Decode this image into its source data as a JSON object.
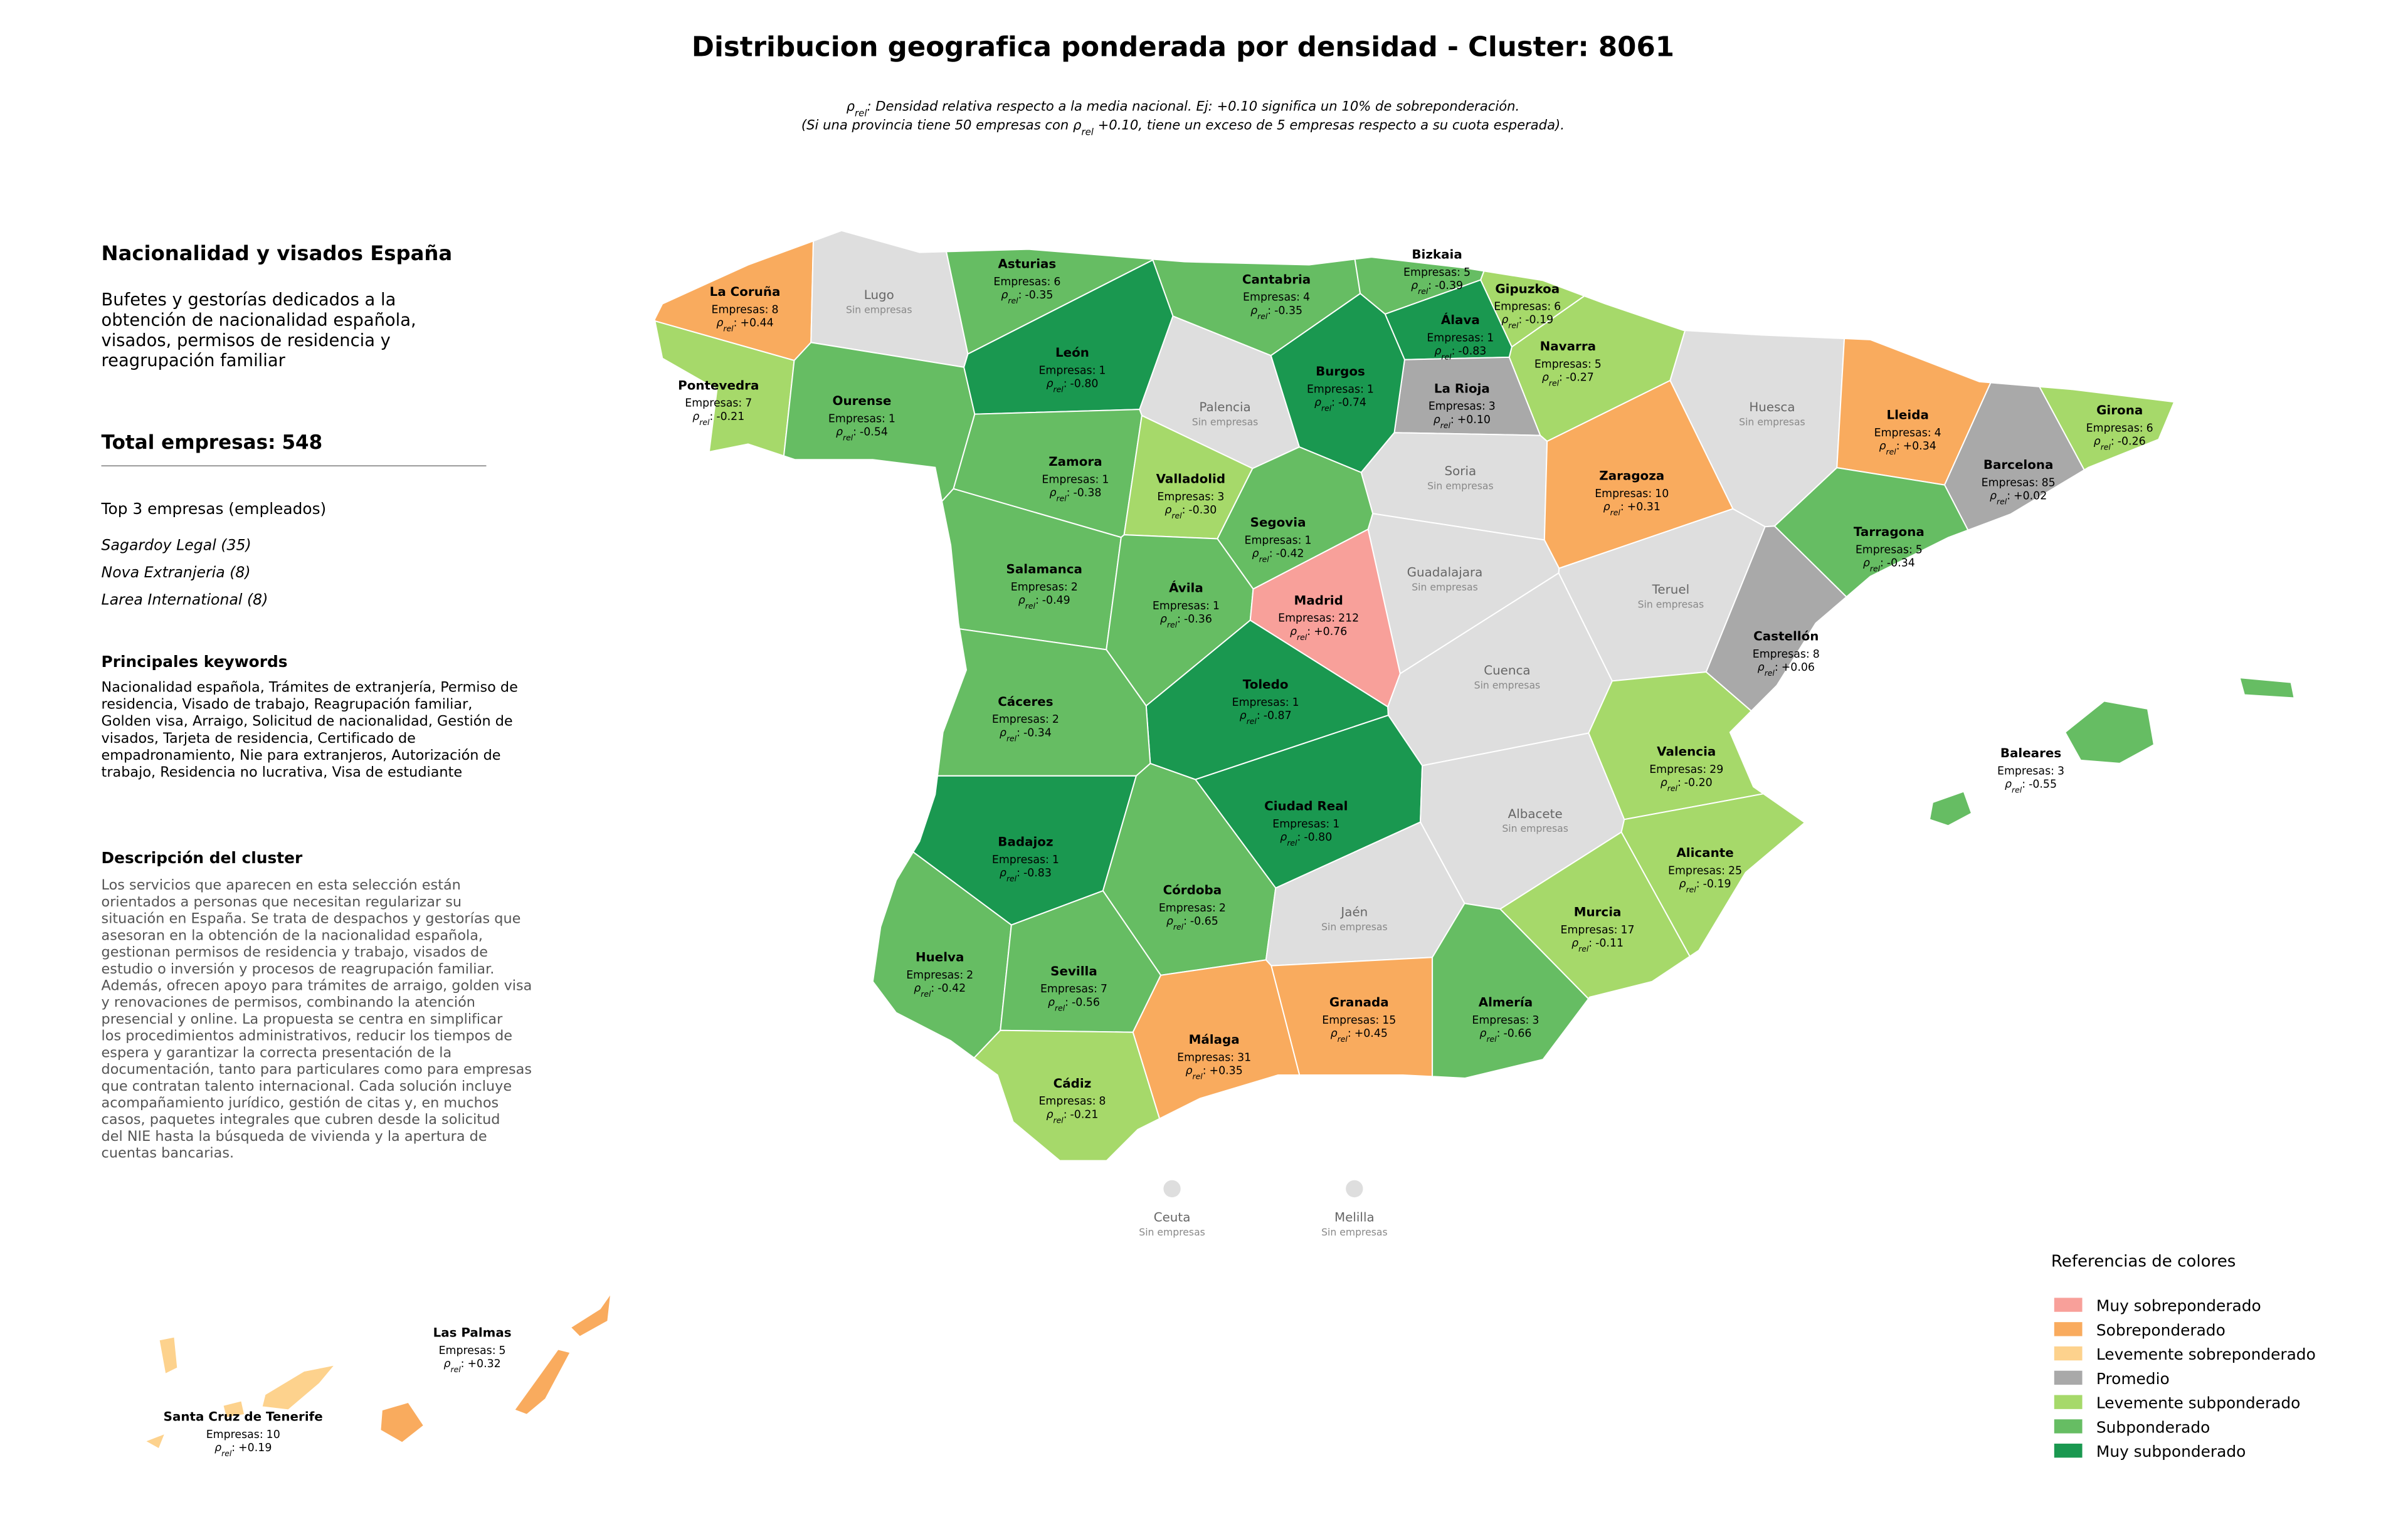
{
  "title": "Distribucion geografica ponderada por densidad - Cluster: 8061",
  "subtitle": [
    {
      "text": "ρ",
      "sub": "rel",
      "rest": ": Densidad relativa respecto a la media nacional. Ej: +0.10 significa un 10% de sobreponderación."
    },
    {
      "text": "(Si una provincia tiene 50 empresas con ρ",
      "sub": "rel",
      "rest": " +0.10, tiene un exceso de 5 empresas respecto a su cuota esperada)."
    }
  ],
  "panel": {
    "heading": "Nacionalidad y visados España",
    "intro": [
      "Bufetes y gestorías dedicados a la",
      "obtención de nacionalidad española,",
      "visados, permisos de residencia y",
      "reagrupación familiar"
    ],
    "total_label": "Total empresas:",
    "total": 548,
    "top_heading": "Top 3 empresas (empleados)",
    "top": [
      "Sagardoy Legal (35)",
      "Nova Extranjeria (8)",
      "Larea International (8)"
    ],
    "keywords_heading": "Principales keywords",
    "keywords": [
      "Nacionalidad española, Trámites de extranjería, Permiso de",
      "residencia, Visado de trabajo, Reagrupación familiar,",
      "Golden visa, Arraigo, Solicitud de nacionalidad, Gestión de",
      "visados, Tarjeta de residencia, Certificado de",
      "empadronamiento, Nie para extranjeros, Autorización de",
      "trabajo, Residencia no lucrativa, Visa de estudiante"
    ],
    "description_heading": "Descripción del cluster",
    "description": [
      "Los servicios que aparecen en esta selección están",
      "orientados a personas que necesitan regularizar su",
      "situación en España. Se trata de despachos y gestorías que",
      "asesoran en la obtención de la nacionalidad española,",
      "gestionan permisos de residencia y trabajo, visados de",
      "estudio o inversión y procesos de reagrupación familiar.",
      "Además, ofrecen apoyo para trámites de arraigo, golden visa",
      "y renovaciones de permisos, combinando la atención",
      "presencial y online. La propuesta se centra en simplificar",
      "los procedimientos administrativos, reducir los tiempos de",
      "espera y garantizar la correcta presentación de la",
      "documentación, tanto para particulares como para empresas",
      "que contratan talento internacional. Cada solución incluye",
      "acompañamiento jurídico, gestión de citas y, en muchos",
      "casos, paquetes integrales que cubren desde la solicitud",
      "del NIE hasta la búsqueda de vivienda y la apertura de",
      "cuentas bancarias."
    ]
  },
  "map": {
    "empresas_label": "Empresas:",
    "rho_symbol": "ρ",
    "rho_sub": "rel",
    "rho_sep": ":",
    "no_data_label": "Sin empresas",
    "no_data_color": "#dedede",
    "provinces": [
      {
        "name": "La Coruña",
        "empresas": 8,
        "rho": 0.44,
        "rho_label": "+0.44",
        "color": "#f9ab5e"
      },
      {
        "name": "Lugo"
      },
      {
        "name": "Asturias",
        "empresas": 6,
        "rho": -0.35,
        "color": "#66bd63"
      },
      {
        "name": "Cantabria",
        "empresas": 4,
        "rho": -0.35,
        "color": "#66bd63"
      },
      {
        "name": "Bizkaia",
        "empresas": 5,
        "rho": -0.39,
        "color": "#66bd63"
      },
      {
        "name": "Gipuzkoa",
        "empresas": 6,
        "rho": -0.19,
        "color": "#a6d96a"
      },
      {
        "name": "Navarra",
        "empresas": 5,
        "rho": -0.27,
        "color": "#a6d96a"
      },
      {
        "name": "Álava",
        "empresas": 1,
        "rho": -0.83,
        "color": "#1a9850"
      },
      {
        "name": "La Rioja",
        "empresas": 3,
        "rho": 0.1,
        "rho_label": "+0.10",
        "color": "#a9a9a9"
      },
      {
        "name": "Pontevedra",
        "empresas": 7,
        "rho": -0.21,
        "color": "#a6d96a"
      },
      {
        "name": "Ourense",
        "empresas": 1,
        "rho": -0.54,
        "color": "#66bd63"
      },
      {
        "name": "León",
        "empresas": 1,
        "rho": -0.8,
        "rho_label": "-0.80",
        "color": "#1a9850"
      },
      {
        "name": "Palencia"
      },
      {
        "name": "Burgos",
        "empresas": 1,
        "rho": -0.74,
        "color": "#1a9850"
      },
      {
        "name": "Huesca"
      },
      {
        "name": "Lleida",
        "empresas": 4,
        "rho": 0.34,
        "rho_label": "+0.34",
        "color": "#f9ab5e"
      },
      {
        "name": "Girona",
        "empresas": 6,
        "rho": -0.26,
        "color": "#a6d96a"
      },
      {
        "name": "Barcelona",
        "empresas": 85,
        "rho": 0.02,
        "rho_label": "+0.02",
        "color": "#a9a9a9"
      },
      {
        "name": "Zamora",
        "empresas": 1,
        "rho": -0.38,
        "color": "#66bd63"
      },
      {
        "name": "Valladolid",
        "empresas": 3,
        "rho": -0.3,
        "rho_label": "-0.30",
        "color": "#a6d96a"
      },
      {
        "name": "Soria"
      },
      {
        "name": "Zaragoza",
        "empresas": 10,
        "rho": 0.31,
        "rho_label": "+0.31",
        "color": "#f9ab5e"
      },
      {
        "name": "Segovia",
        "empresas": 1,
        "rho": -0.42,
        "color": "#66bd63"
      },
      {
        "name": "Tarragona",
        "empresas": 5,
        "rho": -0.34,
        "color": "#66bd63"
      },
      {
        "name": "Salamanca",
        "empresas": 2,
        "rho": -0.49,
        "color": "#66bd63"
      },
      {
        "name": "Guadalajara"
      },
      {
        "name": "Ávila",
        "empresas": 1,
        "rho": -0.36,
        "color": "#66bd63"
      },
      {
        "name": "Madrid",
        "empresas": 212,
        "rho": 0.76,
        "rho_label": "+0.76",
        "color": "#f8a09a"
      },
      {
        "name": "Teruel"
      },
      {
        "name": "Castellón",
        "empresas": 8,
        "rho": 0.06,
        "rho_label": "+0.06",
        "color": "#a9a9a9"
      },
      {
        "name": "Toledo",
        "empresas": 1,
        "rho": -0.87,
        "color": "#1a9850"
      },
      {
        "name": "Cáceres",
        "empresas": 2,
        "rho": -0.34,
        "color": "#66bd63"
      },
      {
        "name": "Cuenca"
      },
      {
        "name": "Valencia",
        "empresas": 29,
        "rho": -0.2,
        "rho_label": "-0.20",
        "color": "#a6d96a"
      },
      {
        "name": "Badajoz",
        "empresas": 1,
        "rho": -0.83,
        "color": "#1a9850"
      },
      {
        "name": "Ciudad Real",
        "empresas": 1,
        "rho": -0.8,
        "rho_label": "-0.80",
        "color": "#1a9850"
      },
      {
        "name": "Albacete"
      },
      {
        "name": "Alicante",
        "empresas": 25,
        "rho": -0.19,
        "color": "#a6d96a"
      },
      {
        "name": "Córdoba",
        "empresas": 2,
        "rho": -0.65,
        "color": "#66bd63"
      },
      {
        "name": "Jaén"
      },
      {
        "name": "Murcia",
        "empresas": 17,
        "rho": -0.11,
        "color": "#a6d96a"
      },
      {
        "name": "Huelva",
        "empresas": 2,
        "rho": -0.42,
        "color": "#66bd63"
      },
      {
        "name": "Sevilla",
        "empresas": 7,
        "rho": -0.56,
        "color": "#66bd63"
      },
      {
        "name": "Granada",
        "empresas": 15,
        "rho": 0.45,
        "rho_label": "+0.45",
        "color": "#f9ab5e"
      },
      {
        "name": "Almería",
        "empresas": 3,
        "rho": -0.66,
        "color": "#66bd63"
      },
      {
        "name": "Málaga",
        "empresas": 31,
        "rho": 0.35,
        "rho_label": "+0.35",
        "color": "#f9ab5e"
      },
      {
        "name": "Cádiz",
        "empresas": 8,
        "rho": -0.21,
        "color": "#a6d96a"
      },
      {
        "name": "Baleares",
        "empresas": 3,
        "rho": -0.55,
        "color": "#66bd63"
      },
      {
        "name": "Las Palmas",
        "empresas": 5,
        "rho": 0.32,
        "rho_label": "+0.32",
        "color": "#f9ab5e"
      },
      {
        "name": "Santa Cruz de Tenerife",
        "empresas": 10,
        "rho": 0.19,
        "rho_label": "+0.19",
        "color": "#fdd28d"
      },
      {
        "name": "Ceuta"
      },
      {
        "name": "Melilla"
      }
    ]
  },
  "legend": {
    "title": "Referencias de colores",
    "items": [
      {
        "label": "Muy sobreponderado",
        "color": "#f8a09a"
      },
      {
        "label": "Sobreponderado",
        "color": "#f9ab5e"
      },
      {
        "label": "Levemente sobreponderado",
        "color": "#fdd28d"
      },
      {
        "label": "Promedio",
        "color": "#a9a9a9"
      },
      {
        "label": "Levemente subponderado",
        "color": "#a6d96a"
      },
      {
        "label": "Subponderado",
        "color": "#66bd63"
      },
      {
        "label": "Muy subponderado",
        "color": "#1a9850"
      }
    ]
  }
}
